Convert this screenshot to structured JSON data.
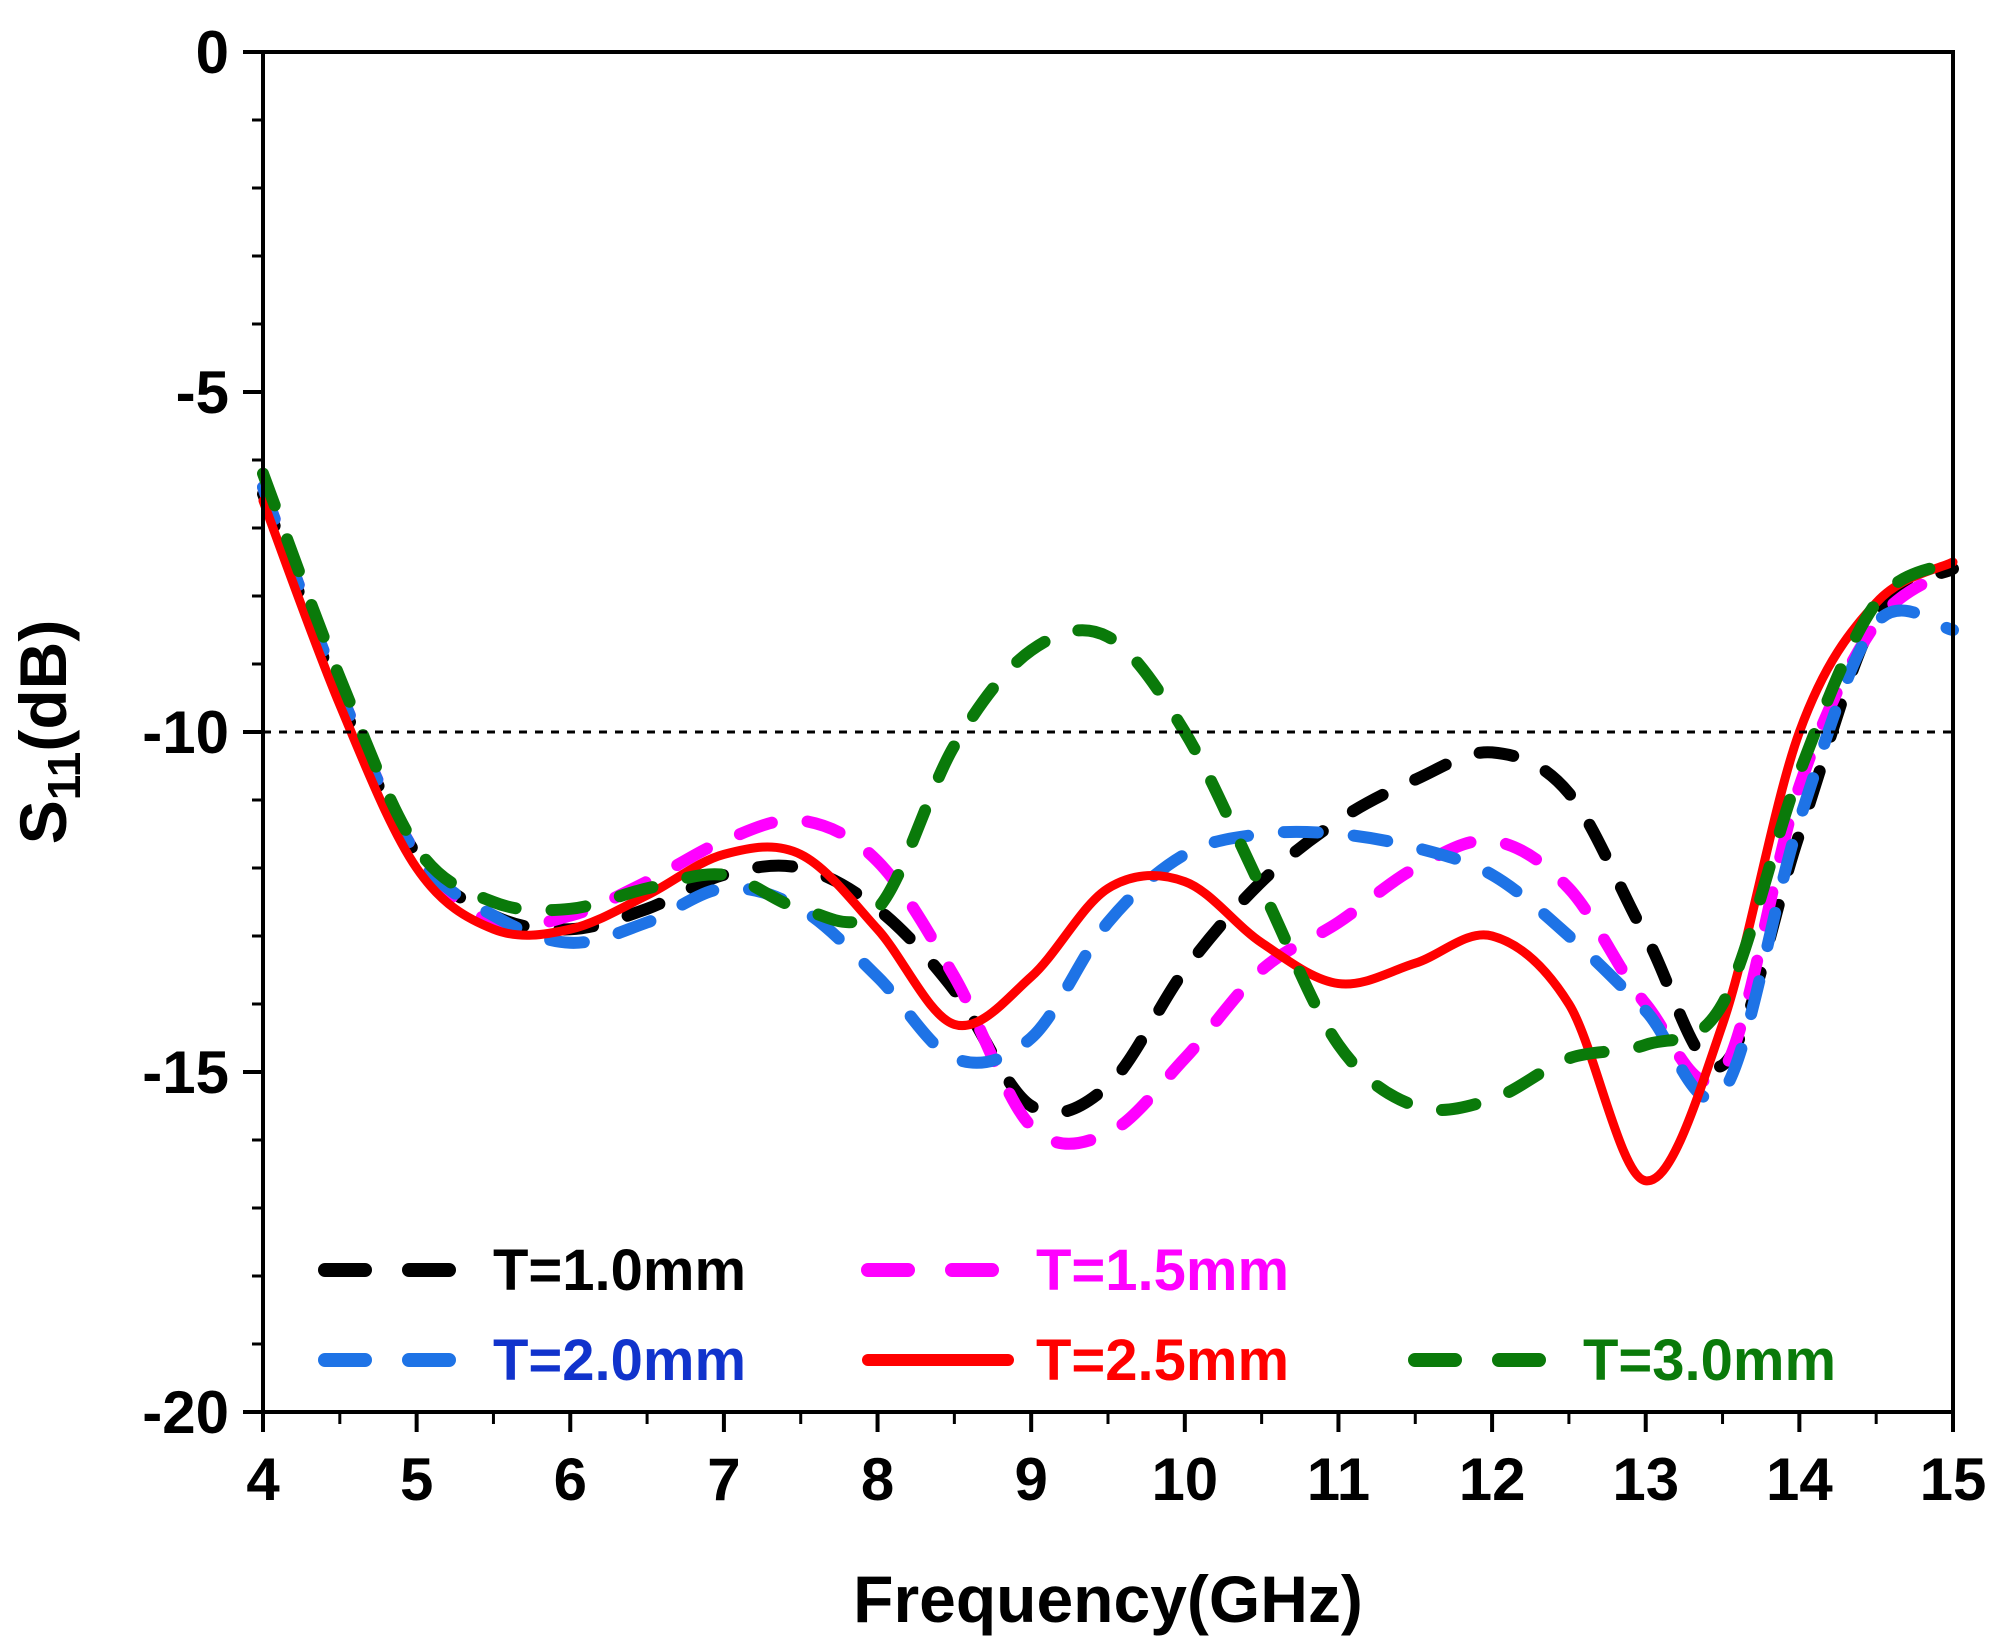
{
  "chart_data": {
    "type": "line",
    "xlabel": "Frequency(GHz)",
    "ylabel_main": "S",
    "ylabel_sub": "11",
    "ylabel_unit": "(dB)",
    "xlim": [
      4,
      15
    ],
    "ylim": [
      -20,
      0
    ],
    "xticks": [
      4,
      5,
      6,
      7,
      8,
      9,
      10,
      11,
      12,
      13,
      14,
      15
    ],
    "yticks": [
      0,
      -5,
      -10,
      -15,
      -20
    ],
    "reference_line": {
      "y": -10,
      "style": "dotted",
      "color": "#000000"
    },
    "legend_position": "bottom-left",
    "series": [
      {
        "name": "T=1.0mm",
        "color": "#000000",
        "style": "dashed",
        "x": [
          4.0,
          4.5,
          5.0,
          5.5,
          6.0,
          6.5,
          7.0,
          7.5,
          8.0,
          8.5,
          9.0,
          9.5,
          10.0,
          10.5,
          11.0,
          11.5,
          12.0,
          12.5,
          13.0,
          13.5,
          14.0,
          14.5,
          15.0
        ],
        "y": [
          -6.5,
          -9.5,
          -11.8,
          -12.7,
          -12.9,
          -12.6,
          -12.1,
          -12.0,
          -12.6,
          -13.8,
          -15.5,
          -15.2,
          -13.5,
          -12.2,
          -11.3,
          -10.7,
          -10.3,
          -10.9,
          -13.0,
          -14.9,
          -11.5,
          -8.3,
          -7.6
        ]
      },
      {
        "name": "T=1.5mm",
        "color": "#ff00ff",
        "style": "dashed",
        "x": [
          4.0,
          4.5,
          5.0,
          5.5,
          6.0,
          6.5,
          7.0,
          7.5,
          8.0,
          8.5,
          9.0,
          9.5,
          10.0,
          10.5,
          11.0,
          11.5,
          12.0,
          12.5,
          13.0,
          13.5,
          14.0,
          14.5,
          15.0
        ],
        "y": [
          -6.4,
          -9.4,
          -11.8,
          -12.8,
          -12.7,
          -12.2,
          -11.6,
          -11.3,
          -11.9,
          -13.6,
          -15.8,
          -15.9,
          -14.8,
          -13.5,
          -12.8,
          -12.0,
          -11.6,
          -12.3,
          -14.0,
          -15.0,
          -10.8,
          -8.4,
          -7.6
        ]
      },
      {
        "name": "T=2.0mm",
        "color": "#1e73e6",
        "style": "dashed",
        "x": [
          4.0,
          4.5,
          5.0,
          5.5,
          6.0,
          6.5,
          7.0,
          7.5,
          8.0,
          8.5,
          9.0,
          9.5,
          10.0,
          10.5,
          11.0,
          11.5,
          12.0,
          12.5,
          13.0,
          13.5,
          14.0,
          14.5,
          15.0
        ],
        "y": [
          -6.4,
          -9.4,
          -11.8,
          -12.7,
          -13.1,
          -12.8,
          -12.3,
          -12.6,
          -13.6,
          -14.8,
          -14.5,
          -12.8,
          -11.8,
          -11.5,
          -11.5,
          -11.7,
          -12.1,
          -13.0,
          -14.1,
          -15.3,
          -11.3,
          -8.4,
          -8.5
        ]
      },
      {
        "name": "T=2.5mm",
        "color": "#ff0000",
        "style": "solid",
        "x": [
          4.0,
          4.5,
          5.0,
          5.5,
          6.0,
          6.5,
          7.0,
          7.5,
          8.0,
          8.5,
          9.0,
          9.5,
          10.0,
          10.5,
          11.0,
          11.5,
          12.0,
          12.5,
          13.0,
          13.5,
          14.0,
          14.5,
          15.0
        ],
        "y": [
          -6.6,
          -9.6,
          -12.0,
          -12.9,
          -12.9,
          -12.4,
          -11.8,
          -11.8,
          -12.9,
          -14.3,
          -13.6,
          -12.3,
          -12.2,
          -13.1,
          -13.7,
          -13.4,
          -13.0,
          -14.0,
          -16.6,
          -14.3,
          -10.0,
          -8.1,
          -7.5
        ]
      },
      {
        "name": "T=3.0mm",
        "color": "#0a7a0a",
        "style": "dashed",
        "x": [
          4.0,
          4.5,
          5.0,
          5.5,
          6.0,
          6.5,
          7.0,
          7.5,
          8.0,
          8.5,
          9.0,
          9.5,
          10.0,
          10.5,
          11.0,
          11.5,
          12.0,
          12.5,
          13.0,
          13.5,
          14.0,
          14.5,
          15.0
        ],
        "y": [
          -6.2,
          -9.2,
          -11.7,
          -12.5,
          -12.6,
          -12.3,
          -12.1,
          -12.6,
          -12.6,
          -10.2,
          -8.8,
          -8.6,
          -10.0,
          -12.3,
          -14.6,
          -15.5,
          -15.4,
          -14.8,
          -14.6,
          -14.0,
          -10.6,
          -8.1,
          -7.5
        ]
      }
    ]
  }
}
